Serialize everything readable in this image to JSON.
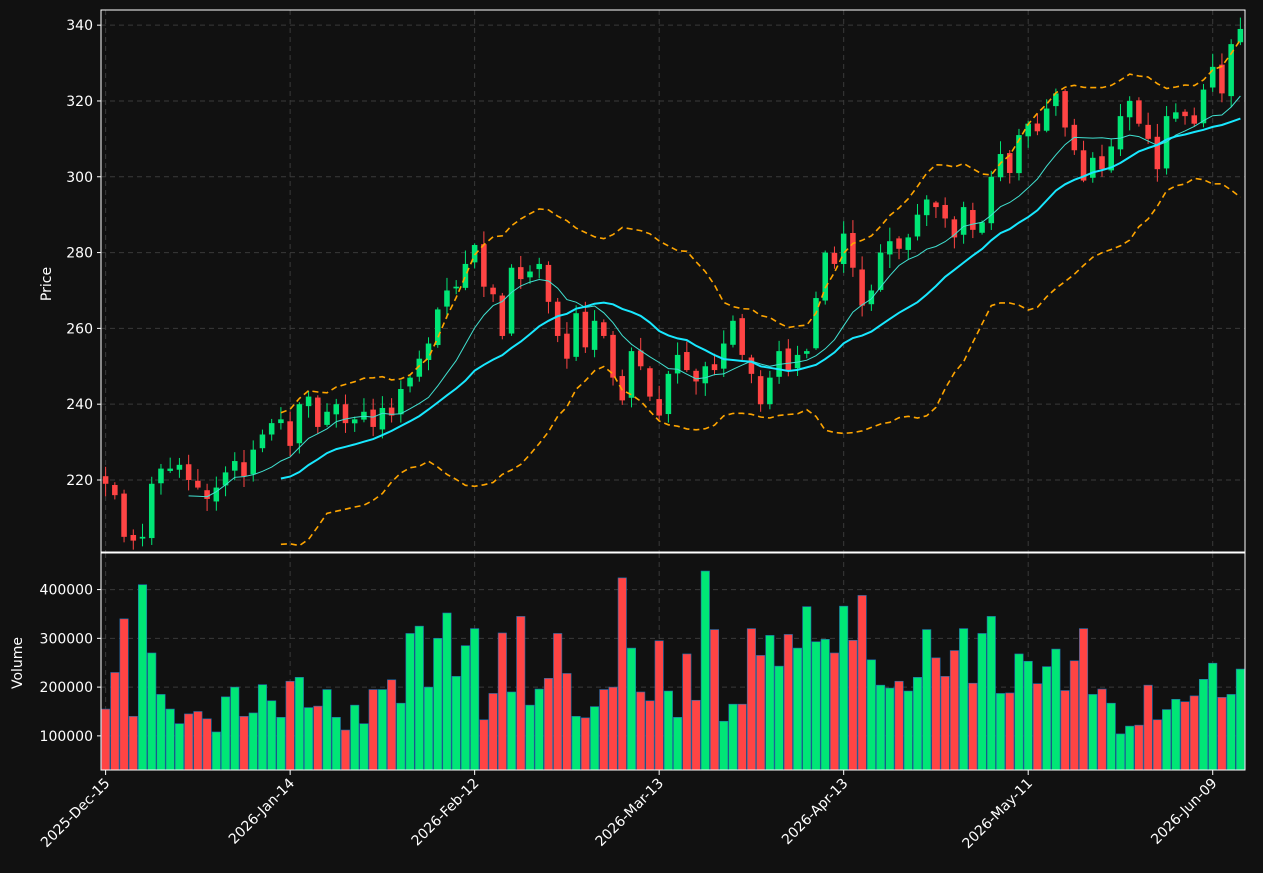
{
  "chart_data": {
    "type": "candlestick",
    "panels": [
      "price",
      "volume"
    ],
    "price_ylabel": "Price",
    "volume_ylabel": "Volume",
    "price_ylim": [
      201,
      344
    ],
    "price_yticks": [
      220,
      240,
      260,
      280,
      300,
      320,
      340
    ],
    "volume_ylim": [
      30000,
      475000
    ],
    "volume_yticks": [
      100000,
      200000,
      300000,
      400000
    ],
    "x_tick_labels": [
      "2025-Dec-15",
      "2026-Jan-14",
      "2026-Feb-12",
      "2026-Mar-13",
      "2026-Apr-13",
      "2026-May-11",
      "2026-Jun-09"
    ],
    "x_tick_indices": [
      0,
      20,
      40,
      60,
      80,
      100,
      120
    ],
    "n_bars": 124,
    "grid": true,
    "colors": {
      "background": "#111111",
      "axes": "#ffffff",
      "up": "#00e676",
      "down": "#ff4444",
      "ma_fast": "#40e0d0",
      "ma_slow": "#18e8ff",
      "bands": "#ffa500",
      "grid": "#3a3a3a"
    },
    "series": [
      {
        "role": "ohlc",
        "anchors": [
          [
            0,
            219
          ],
          [
            1,
            216
          ],
          [
            2,
            205
          ],
          [
            3,
            204
          ],
          [
            4,
            205
          ],
          [
            5,
            219
          ],
          [
            6,
            223
          ],
          [
            7,
            223
          ],
          [
            8,
            224
          ],
          [
            9,
            220
          ],
          [
            10,
            218
          ],
          [
            11,
            215
          ],
          [
            12,
            218
          ],
          [
            13,
            222
          ],
          [
            14,
            225
          ],
          [
            15,
            221
          ],
          [
            16,
            228
          ],
          [
            17,
            232
          ],
          [
            18,
            235
          ],
          [
            19,
            236
          ],
          [
            20,
            229
          ],
          [
            21,
            240
          ],
          [
            22,
            242
          ],
          [
            23,
            234
          ],
          [
            24,
            238
          ],
          [
            25,
            240
          ],
          [
            26,
            235
          ],
          [
            27,
            236
          ],
          [
            28,
            238
          ],
          [
            29,
            234
          ],
          [
            30,
            239
          ],
          [
            31,
            237
          ],
          [
            32,
            244
          ],
          [
            33,
            247
          ],
          [
            34,
            252
          ],
          [
            35,
            256
          ],
          [
            36,
            265
          ],
          [
            37,
            270
          ],
          [
            38,
            271
          ],
          [
            39,
            277
          ],
          [
            40,
            282
          ],
          [
            41,
            271
          ],
          [
            42,
            269
          ],
          [
            43,
            258
          ],
          [
            44,
            276
          ],
          [
            45,
            273
          ],
          [
            46,
            275
          ],
          [
            47,
            277
          ],
          [
            48,
            267
          ],
          [
            49,
            258
          ],
          [
            50,
            252
          ],
          [
            51,
            264
          ],
          [
            52,
            255
          ],
          [
            53,
            262
          ],
          [
            54,
            258
          ],
          [
            55,
            247
          ],
          [
            56,
            241
          ],
          [
            57,
            254
          ],
          [
            58,
            250
          ],
          [
            59,
            242
          ],
          [
            60,
            237
          ],
          [
            61,
            248
          ],
          [
            62,
            253
          ],
          [
            63,
            249
          ],
          [
            64,
            246
          ],
          [
            65,
            250
          ],
          [
            66,
            249
          ],
          [
            67,
            256
          ],
          [
            68,
            262
          ],
          [
            69,
            253
          ],
          [
            70,
            248
          ],
          [
            71,
            240
          ],
          [
            72,
            247
          ],
          [
            73,
            254
          ],
          [
            74,
            249
          ],
          [
            75,
            253
          ],
          [
            76,
            254
          ],
          [
            77,
            268
          ],
          [
            78,
            280
          ],
          [
            79,
            277
          ],
          [
            80,
            285
          ],
          [
            81,
            276
          ],
          [
            82,
            266
          ],
          [
            83,
            270
          ],
          [
            84,
            280
          ],
          [
            85,
            283
          ],
          [
            86,
            281
          ],
          [
            87,
            284
          ],
          [
            88,
            290
          ],
          [
            89,
            294
          ],
          [
            90,
            292
          ],
          [
            91,
            289
          ],
          [
            92,
            284
          ],
          [
            93,
            292
          ],
          [
            94,
            286
          ],
          [
            95,
            288
          ],
          [
            96,
            300
          ],
          [
            97,
            306
          ],
          [
            98,
            301
          ],
          [
            99,
            311
          ],
          [
            100,
            314
          ],
          [
            101,
            312
          ],
          [
            102,
            318
          ],
          [
            103,
            322
          ],
          [
            104,
            313
          ],
          [
            105,
            307
          ],
          [
            106,
            299
          ],
          [
            107,
            305
          ],
          [
            108,
            302
          ],
          [
            109,
            308
          ],
          [
            110,
            316
          ],
          [
            111,
            320
          ],
          [
            112,
            314
          ],
          [
            113,
            310
          ],
          [
            114,
            302
          ],
          [
            115,
            316
          ],
          [
            116,
            317
          ],
          [
            117,
            316
          ],
          [
            118,
            314
          ],
          [
            119,
            323
          ],
          [
            120,
            329
          ],
          [
            121,
            322
          ],
          [
            122,
            335
          ],
          [
            123,
            339
          ]
        ]
      },
      {
        "role": "volume",
        "values": [
          155000,
          230000,
          340000,
          140000,
          410000,
          270000,
          185000,
          155000,
          125000,
          145000,
          150000,
          135000,
          108000,
          180000,
          200000,
          140000,
          147000,
          205000,
          172000,
          138000,
          212000,
          220000,
          158000,
          161000,
          195000,
          138000,
          112000,
          163000,
          125000,
          195000,
          195000,
          215000,
          167000,
          310000,
          325000,
          200000,
          300000,
          352000,
          222000,
          285000,
          320000,
          133000,
          187000,
          311000,
          190000,
          345000,
          163000,
          196000,
          218000,
          310000,
          228000,
          140000,
          137000,
          160000,
          195000,
          200000,
          424000,
          280000,
          190000,
          172000,
          295000,
          192000,
          138000,
          268000,
          173000,
          438000,
          318000,
          130000,
          165000,
          165000,
          320000,
          265000,
          306000,
          243000,
          308000,
          280000,
          365000,
          293000,
          298000,
          270000,
          366000,
          296000,
          388000,
          256000,
          204000,
          198000,
          212000,
          192000,
          220000,
          318000,
          260000,
          222000,
          275000,
          320000,
          208000,
          310000,
          345000,
          187000,
          188000,
          268000,
          253000,
          207000,
          242000,
          278000,
          193000,
          254000,
          320000,
          185000,
          196000,
          167000,
          104000,
          120000,
          122000,
          204000,
          133000,
          154000,
          175000,
          170000,
          182000,
          216000,
          249000,
          179000,
          185000,
          237000
        ]
      }
    ]
  }
}
